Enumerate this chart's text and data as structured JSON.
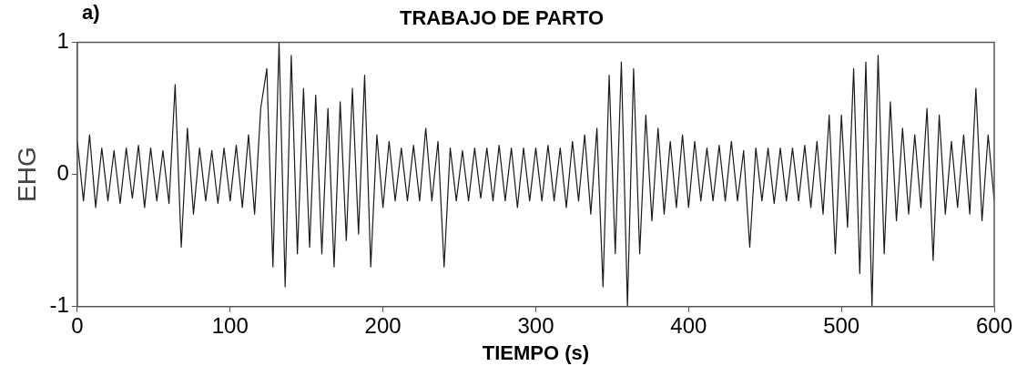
{
  "chart_data": {
    "type": "line",
    "title": "TRABAJO DE PARTO",
    "xlabel": "TIEMPO (s)",
    "ylabel": "EHG",
    "annotations": [
      "a)"
    ],
    "x": [
      0,
      4,
      8,
      12,
      16,
      20,
      24,
      28,
      32,
      36,
      40,
      44,
      48,
      52,
      56,
      60,
      64,
      68,
      72,
      76,
      80,
      84,
      88,
      92,
      96,
      100,
      104,
      108,
      112,
      116,
      120,
      124,
      128,
      132,
      136,
      140,
      144,
      148,
      152,
      156,
      160,
      164,
      168,
      172,
      176,
      180,
      184,
      188,
      192,
      196,
      200,
      204,
      208,
      212,
      216,
      220,
      224,
      228,
      232,
      236,
      240,
      244,
      248,
      252,
      256,
      260,
      264,
      268,
      272,
      276,
      280,
      284,
      288,
      292,
      296,
      300,
      304,
      308,
      312,
      316,
      320,
      324,
      328,
      332,
      336,
      340,
      344,
      348,
      352,
      356,
      360,
      364,
      368,
      372,
      376,
      380,
      384,
      388,
      392,
      396,
      400,
      404,
      408,
      412,
      416,
      420,
      424,
      428,
      432,
      436,
      440,
      444,
      448,
      452,
      456,
      460,
      464,
      468,
      472,
      476,
      480,
      484,
      488,
      492,
      496,
      500,
      504,
      508,
      512,
      516,
      520,
      524,
      528,
      532,
      536,
      540,
      544,
      548,
      552,
      556,
      560,
      564,
      568,
      572,
      576,
      580,
      584,
      588,
      592,
      596,
      600
    ],
    "series": [
      {
        "color": "#1a1a1a",
        "values": [
          0.25,
          -0.2,
          0.3,
          -0.25,
          0.2,
          -0.2,
          0.18,
          -0.22,
          0.2,
          -0.18,
          0.22,
          -0.25,
          0.2,
          -0.2,
          0.18,
          -0.22,
          0.68,
          -0.55,
          0.35,
          -0.3,
          0.2,
          -0.2,
          0.18,
          -0.22,
          0.2,
          -0.2,
          0.22,
          -0.25,
          0.3,
          -0.3,
          0.5,
          0.8,
          -0.7,
          1.0,
          -0.85,
          0.9,
          -0.6,
          0.65,
          -0.55,
          0.6,
          -0.6,
          0.5,
          -0.7,
          0.55,
          -0.5,
          0.65,
          -0.45,
          0.75,
          -0.7,
          0.3,
          -0.25,
          0.25,
          -0.2,
          0.2,
          -0.2,
          0.22,
          -0.2,
          0.35,
          -0.2,
          0.25,
          -0.7,
          0.2,
          -0.2,
          0.18,
          -0.2,
          0.2,
          -0.18,
          0.2,
          -0.2,
          0.22,
          -0.2,
          0.2,
          -0.25,
          0.2,
          -0.2,
          0.2,
          -0.2,
          0.22,
          -0.2,
          0.2,
          -0.25,
          0.25,
          -0.2,
          0.3,
          -0.3,
          0.35,
          -0.85,
          0.75,
          -0.6,
          0.85,
          -1.0,
          0.8,
          -0.6,
          0.45,
          -0.35,
          0.35,
          -0.3,
          0.25,
          -0.25,
          0.3,
          -0.25,
          0.25,
          -0.2,
          0.2,
          -0.2,
          0.22,
          -0.2,
          0.25,
          -0.2,
          0.18,
          -0.55,
          0.2,
          -0.2,
          0.2,
          -0.22,
          0.2,
          -0.2,
          0.2,
          -0.2,
          0.22,
          -0.25,
          0.25,
          -0.3,
          0.45,
          -0.6,
          0.45,
          -0.4,
          0.8,
          -0.75,
          0.85,
          -1.0,
          0.9,
          -0.6,
          0.55,
          -0.35,
          0.35,
          -0.3,
          0.3,
          -0.25,
          0.5,
          -0.65,
          0.45,
          -0.3,
          0.25,
          -0.25,
          0.3,
          -0.3,
          0.65,
          -0.35,
          0.3,
          -0.2
        ]
      }
    ],
    "xlim": [
      0,
      600
    ],
    "xticks": [
      0,
      100,
      200,
      300,
      400,
      500,
      600
    ],
    "ylim": [
      -1,
      1
    ],
    "yticks": [
      -1,
      0,
      1
    ],
    "grid": false,
    "legend": false,
    "marker": "none",
    "line_style": "solid"
  }
}
